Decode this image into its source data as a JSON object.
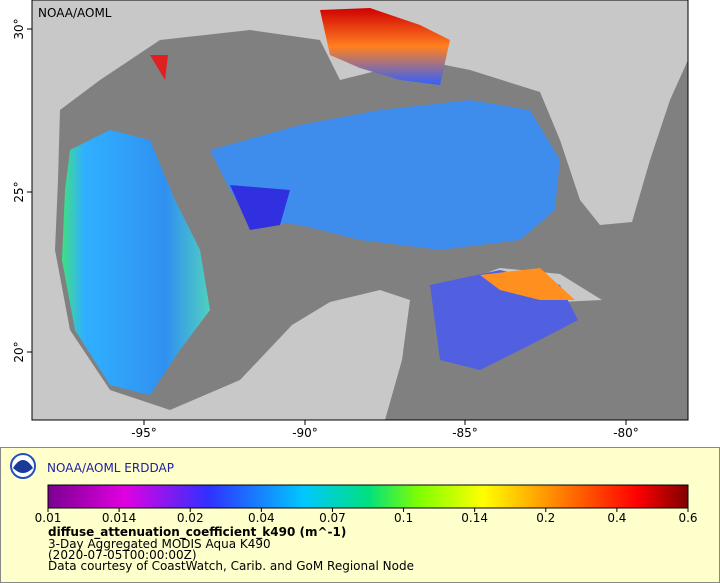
{
  "map": {
    "watermark": "NOAA/AOML",
    "lon_labels": [
      "-95°",
      "-90°",
      "-85°",
      "-80°"
    ],
    "lat_labels": [
      "30°",
      "25°",
      "20°"
    ]
  },
  "legend": {
    "title": "NOAA/AOML ERDDAP",
    "scale_labels": [
      0.01,
      0.014,
      0.02,
      0.04,
      0.07,
      0.1,
      0.14,
      0.2,
      0.4,
      0.6
    ],
    "variable": "diffuse_attenuation_coefficient_k490 (m^-1)",
    "dataset": "3-Day Aggregated MODIS Aqua K490",
    "time": "(2020-07-05T00:00:00Z)",
    "credit": "Data courtesy of CoastWatch, Carib. and GoM Regional Node"
  }
}
